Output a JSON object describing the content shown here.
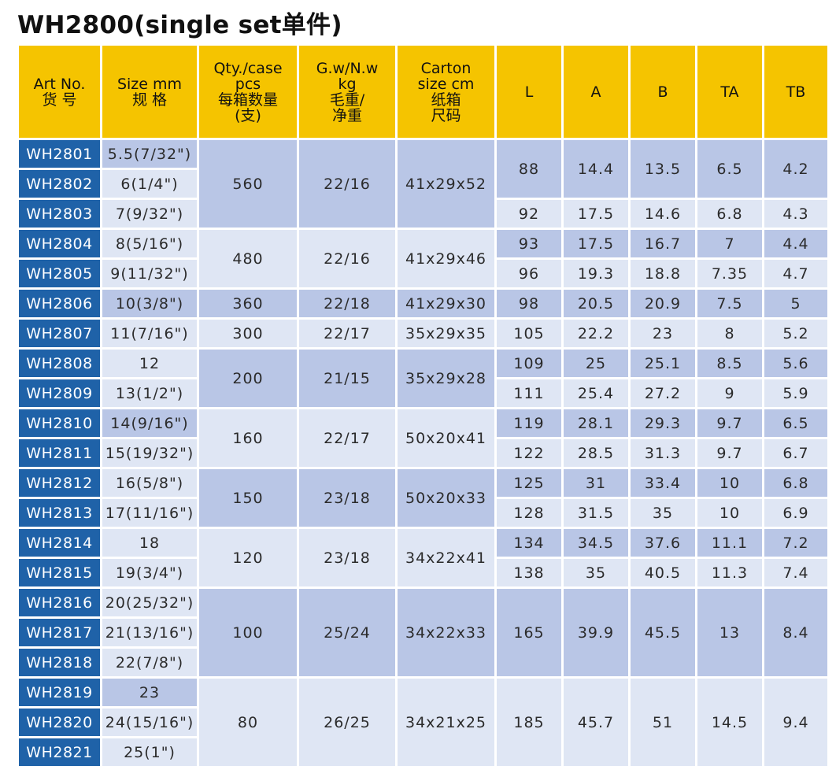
{
  "title": "WH2800(single set单件)",
  "colors": {
    "header": "#f5c400",
    "art_cell": "#1f62a8",
    "row_dark": "#b9c6e6",
    "row_light": "#dfe6f4"
  },
  "headers": [
    [
      "Art No.",
      "货 号"
    ],
    [
      "Size mm",
      "规 格"
    ],
    [
      "Qty./case",
      "pcs",
      "每箱数量",
      "(支)"
    ],
    [
      "G.w/N.w",
      "kg",
      "毛重/",
      "净重"
    ],
    [
      "Carton",
      "size cm",
      "纸箱",
      "尺码"
    ],
    [
      "L"
    ],
    [
      "A"
    ],
    [
      "B"
    ],
    [
      "TA"
    ],
    [
      "TB"
    ]
  ],
  "rows": [
    {
      "art": "WH2801",
      "size": "5.5(7/32\")"
    },
    {
      "art": "WH2802",
      "size": "6(1/4\")"
    },
    {
      "art": "WH2803",
      "size": "7(9/32\")"
    },
    {
      "art": "WH2804",
      "size": "8(5/16\")"
    },
    {
      "art": "WH2805",
      "size": "9(11/32\")"
    },
    {
      "art": "WH2806",
      "size": "10(3/8\")"
    },
    {
      "art": "WH2807",
      "size": "11(7/16\")"
    },
    {
      "art": "WH2808",
      "size": "12"
    },
    {
      "art": "WH2809",
      "size": "13(1/2\")"
    },
    {
      "art": "WH2810",
      "size": "14(9/16\")"
    },
    {
      "art": "WH2811",
      "size": "15(19/32\")"
    },
    {
      "art": "WH2812",
      "size": "16(5/8\")"
    },
    {
      "art": "WH2813",
      "size": "17(11/16\")"
    },
    {
      "art": "WH2814",
      "size": "18"
    },
    {
      "art": "WH2815",
      "size": "19(3/4\")"
    },
    {
      "art": "WH2816",
      "size": "20(25/32\")"
    },
    {
      "art": "WH2817",
      "size": "21(13/16\")"
    },
    {
      "art": "WH2818",
      "size": "22(7/8\")"
    },
    {
      "art": "WH2819",
      "size": "23"
    },
    {
      "art": "WH2820",
      "size": "24(15/16\")"
    },
    {
      "art": "WH2821",
      "size": "25(1\")"
    }
  ],
  "groups": [
    {
      "qty": "560",
      "weight": "22/16",
      "carton": "41x29x52"
    },
    {
      "qty": "480",
      "weight": "22/16",
      "carton": "41x29x46"
    },
    {
      "qty": "360",
      "weight": "22/18",
      "carton": "41x29x30"
    },
    {
      "qty": "300",
      "weight": "22/17",
      "carton": "35x29x35"
    },
    {
      "qty": "200",
      "weight": "21/15",
      "carton": "35x29x28"
    },
    {
      "qty": "160",
      "weight": "22/17",
      "carton": "50x20x41"
    },
    {
      "qty": "150",
      "weight": "23/18",
      "carton": "50x20x33"
    },
    {
      "qty": "120",
      "weight": "23/18",
      "carton": "34x22x41"
    },
    {
      "qty": "100",
      "weight": "25/24",
      "carton": "34x22x33"
    },
    {
      "qty": "80",
      "weight": "26/25",
      "carton": "34x21x25"
    }
  ],
  "dims": [
    {
      "L": "88",
      "A": "14.4",
      "B": "13.5",
      "TA": "6.5",
      "TB": "4.2"
    },
    {
      "L": "92",
      "A": "17.5",
      "B": "14.6",
      "TA": "6.8",
      "TB": "4.3"
    },
    {
      "L": "93",
      "A": "17.5",
      "B": "16.7",
      "TA": "7",
      "TB": "4.4"
    },
    {
      "L": "96",
      "A": "19.3",
      "B": "18.8",
      "TA": "7.35",
      "TB": "4.7"
    },
    {
      "L": "98",
      "A": "20.5",
      "B": "20.9",
      "TA": "7.5",
      "TB": "5"
    },
    {
      "L": "105",
      "A": "22.2",
      "B": "23",
      "TA": "8",
      "TB": "5.2"
    },
    {
      "L": "109",
      "A": "25",
      "B": "25.1",
      "TA": "8.5",
      "TB": "5.6"
    },
    {
      "L": "111",
      "A": "25.4",
      "B": "27.2",
      "TA": "9",
      "TB": "5.9"
    },
    {
      "L": "119",
      "A": "28.1",
      "B": "29.3",
      "TA": "9.7",
      "TB": "6.5"
    },
    {
      "L": "122",
      "A": "28.5",
      "B": "31.3",
      "TA": "9.7",
      "TB": "6.7"
    },
    {
      "L": "125",
      "A": "31",
      "B": "33.4",
      "TA": "10",
      "TB": "6.8"
    },
    {
      "L": "128",
      "A": "31.5",
      "B": "35",
      "TA": "10",
      "TB": "6.9"
    },
    {
      "L": "134",
      "A": "34.5",
      "B": "37.6",
      "TA": "11.1",
      "TB": "7.2"
    },
    {
      "L": "138",
      "A": "35",
      "B": "40.5",
      "TA": "11.3",
      "TB": "7.4"
    },
    {
      "L": "165",
      "A": "39.9",
      "B": "45.5",
      "TA": "13",
      "TB": "8.4"
    },
    {
      "L": "185",
      "A": "45.7",
      "B": "51",
      "TA": "14.5",
      "TB": "9.4"
    }
  ]
}
